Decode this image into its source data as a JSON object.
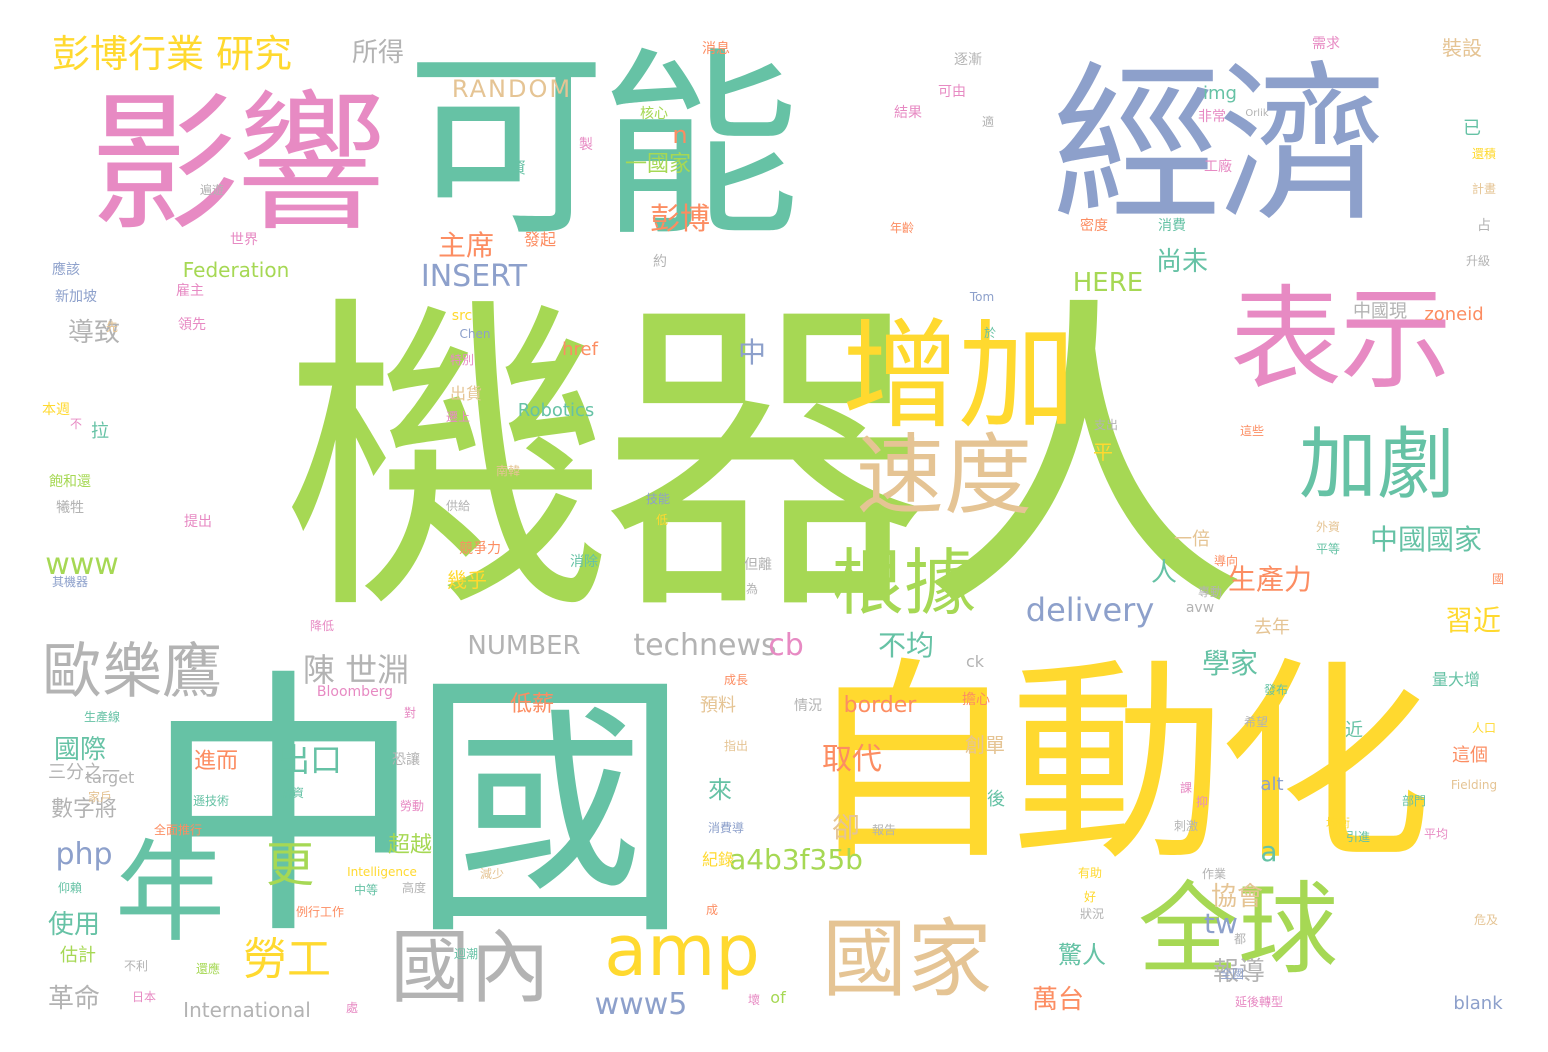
{
  "words": [
    {
      "text": "機器人",
      "color": "#a6d854"
    },
    {
      "text": "可能",
      "color": "#66c2a5"
    },
    {
      "text": "經濟",
      "color": "#8da0cb"
    },
    {
      "text": "影響",
      "color": "#e78ac3"
    },
    {
      "text": "中國",
      "color": "#66c2a5"
    },
    {
      "text": "自動化",
      "color": "#ffd92f"
    },
    {
      "text": "增加",
      "color": "#ffd92f"
    },
    {
      "text": "表示",
      "color": "#e78ac3"
    },
    {
      "text": "速度",
      "color": "#e5c494"
    },
    {
      "text": "加劇",
      "color": "#66c2a5"
    },
    {
      "text": "根據",
      "color": "#a6d854"
    },
    {
      "text": "全球",
      "color": "#a6d854"
    },
    {
      "text": "國家",
      "color": "#e5c494"
    },
    {
      "text": "年",
      "color": "#66c2a5"
    },
    {
      "text": "國內",
      "color": "#b3b3b3"
    },
    {
      "text": "amp",
      "color": "#ffd92f"
    },
    {
      "text": "歐樂鷹",
      "color": "#b3b3b3"
    },
    {
      "text": "彭博行業 研究",
      "color": "#ffd92f"
    },
    {
      "text": "勞工",
      "color": "#ffd92f"
    },
    {
      "text": "更",
      "color": "#a6d854"
    },
    {
      "text": "陳 世淵",
      "color": "#b3b3b3"
    },
    {
      "text": "出口",
      "color": "#66c2a5"
    },
    {
      "text": "中",
      "color": "#8da0cb"
    },
    {
      "text": "中國國家",
      "color": "#66c2a5"
    },
    {
      "text": "主席",
      "color": "#fc8d62"
    },
    {
      "text": "INSERT",
      "color": "#8da0cb"
    },
    {
      "text": "RANDOM",
      "color": "#e5c494"
    },
    {
      "text": "delivery",
      "color": "#8da0cb"
    },
    {
      "text": "technews",
      "color": "#b3b3b3"
    },
    {
      "text": "NUMBER",
      "color": "#b3b3b3"
    },
    {
      "text": "cb",
      "color": "#e78ac3"
    },
    {
      "text": "a4b3f35b",
      "color": "#a6d854"
    },
    {
      "text": "www5",
      "color": "#8da0cb"
    },
    {
      "text": "php",
      "color": "#8da0cb"
    },
    {
      "text": "www",
      "color": "#a6d854"
    },
    {
      "text": "彭博",
      "color": "#fc8d62"
    },
    {
      "text": "一國家",
      "color": "#a6d854"
    },
    {
      "text": "n",
      "color": "#fc8d62"
    },
    {
      "text": "HERE",
      "color": "#a6d854"
    },
    {
      "text": "Federation",
      "color": "#a6d854"
    },
    {
      "text": "Robotics",
      "color": "#66c2a5"
    },
    {
      "text": "href",
      "color": "#fc8d62"
    },
    {
      "text": "zoneid",
      "color": "#fc8d62"
    },
    {
      "text": "中國現",
      "color": "#b3b3b3"
    },
    {
      "text": "尚未",
      "color": "#66c2a5"
    },
    {
      "text": "生產力",
      "color": "#fc8d62"
    },
    {
      "text": "習近",
      "color": "#ffd92f"
    },
    {
      "text": "學家",
      "color": "#66c2a5"
    },
    {
      "text": "報導",
      "color": "#b3b3b3"
    },
    {
      "text": "協會",
      "color": "#e5c494"
    },
    {
      "text": "tw",
      "color": "#8da0cb"
    },
    {
      "text": "a",
      "color": "#66c2a5"
    },
    {
      "text": "border",
      "color": "#fc8d62"
    },
    {
      "text": "取代",
      "color": "#fc8d62"
    },
    {
      "text": "卻",
      "color": "#e5c494"
    },
    {
      "text": "來",
      "color": "#66c2a5"
    },
    {
      "text": "超越",
      "color": "#a6d854"
    },
    {
      "text": "萬台",
      "color": "#fc8d62"
    },
    {
      "text": "驚人",
      "color": "#66c2a5"
    },
    {
      "text": "不均",
      "color": "#66c2a5"
    },
    {
      "text": "人",
      "color": "#66c2a5"
    },
    {
      "text": "幾乎",
      "color": "#ffd92f"
    },
    {
      "text": "平",
      "color": "#ffd92f"
    },
    {
      "text": "一倍",
      "color": "#e5c494"
    },
    {
      "text": "去年",
      "color": "#e5c494"
    },
    {
      "text": "導致",
      "color": "#b3b3b3"
    },
    {
      "text": "國際",
      "color": "#66c2a5"
    },
    {
      "text": "數字將",
      "color": "#b3b3b3"
    },
    {
      "text": "使用",
      "color": "#66c2a5"
    },
    {
      "text": "革命",
      "color": "#b3b3b3"
    },
    {
      "text": "所得",
      "color": "#b3b3b3"
    },
    {
      "text": "進而",
      "color": "#fc8d62"
    },
    {
      "text": "低薪",
      "color": "#fc8d62"
    },
    {
      "text": "創單",
      "color": "#e5c494"
    },
    {
      "text": "紀錄",
      "color": "#ffd92f"
    },
    {
      "text": "預料",
      "color": "#e5c494"
    },
    {
      "text": "裝設",
      "color": "#e5c494"
    },
    {
      "text": "img",
      "color": "#66c2a5"
    },
    {
      "text": "三分之一",
      "color": "#b3b3b3"
    },
    {
      "text": "International",
      "color": "#b3b3b3"
    },
    {
      "text": "blank",
      "color": "#8da0cb"
    },
    {
      "text": "of",
      "color": "#a6d854"
    },
    {
      "text": "alt",
      "color": "#8da0cb"
    },
    {
      "text": "target",
      "color": "#b3b3b3"
    },
    {
      "text": "Bloomberg",
      "color": "#e78ac3"
    },
    {
      "text": "src",
      "color": "#ffd92f"
    },
    {
      "text": "Chen",
      "color": "#8da0cb"
    },
    {
      "text": "avw",
      "color": "#b3b3b3"
    },
    {
      "text": "ck",
      "color": "#b3b3b3"
    },
    {
      "text": "Tom",
      "color": "#8da0cb"
    },
    {
      "text": "Intelligence",
      "color": "#ffd92f"
    },
    {
      "text": "Fielding",
      "color": "#e5c494"
    },
    {
      "text": "Orlik",
      "color": "#b3b3b3"
    },
    {
      "text": "估計",
      "color": "#a6d854"
    },
    {
      "text": "拉",
      "color": "#66c2a5"
    },
    {
      "text": "出貨",
      "color": "#e5c494"
    },
    {
      "text": "這個",
      "color": "#fc8d62"
    },
    {
      "text": "量大增",
      "color": "#66c2a5"
    },
    {
      "text": "後",
      "color": "#66c2a5"
    },
    {
      "text": "近",
      "color": "#66c2a5"
    },
    {
      "text": "已",
      "color": "#66c2a5"
    },
    {
      "text": "消息",
      "color": "#fc8d62"
    },
    {
      "text": "逐漸",
      "color": "#b3b3b3"
    },
    {
      "text": "需求",
      "color": "#e78ac3"
    },
    {
      "text": "核心",
      "color": "#a6d854"
    },
    {
      "text": "可由",
      "color": "#e78ac3"
    },
    {
      "text": "結果",
      "color": "#e78ac3"
    },
    {
      "text": "非常",
      "color": "#e78ac3"
    },
    {
      "text": "工廠",
      "color": "#e78ac3"
    },
    {
      "text": "資",
      "color": "#66c2a5"
    },
    {
      "text": "製",
      "color": "#e78ac3"
    },
    {
      "text": "密度",
      "color": "#fc8d62"
    },
    {
      "text": "消費",
      "color": "#66c2a5"
    },
    {
      "text": "年齡",
      "color": "#fc8d62"
    },
    {
      "text": "發起",
      "color": "#fc8d62"
    },
    {
      "text": "約",
      "color": "#b3b3b3"
    },
    {
      "text": "世界",
      "color": "#e78ac3"
    },
    {
      "text": "應該",
      "color": "#8da0cb"
    },
    {
      "text": "新加坡",
      "color": "#8da0cb"
    },
    {
      "text": "雇主",
      "color": "#e78ac3"
    },
    {
      "text": "領先",
      "color": "#e78ac3"
    },
    {
      "text": "本週",
      "color": "#ffd92f"
    },
    {
      "text": "不",
      "color": "#e78ac3"
    },
    {
      "text": "飽和還",
      "color": "#a6d854"
    },
    {
      "text": "犧牲",
      "color": "#b3b3b3"
    },
    {
      "text": "其機器",
      "color": "#8da0cb"
    },
    {
      "text": "提出",
      "color": "#e78ac3"
    },
    {
      "text": "供給",
      "color": "#b3b3b3"
    },
    {
      "text": "競爭力",
      "color": "#fc8d62"
    },
    {
      "text": "消除",
      "color": "#66c2a5"
    },
    {
      "text": "但離",
      "color": "#b3b3b3"
    },
    {
      "text": "為",
      "color": "#b3b3b3"
    },
    {
      "text": "技能",
      "color": "#8da0cb"
    },
    {
      "text": "低",
      "color": "#ffd92f"
    },
    {
      "text": "南韓",
      "color": "#e5c494"
    },
    {
      "text": "這些",
      "color": "#fc8d62"
    },
    {
      "text": "支出",
      "color": "#b3b3b3"
    },
    {
      "text": "導向",
      "color": "#fc8d62"
    },
    {
      "text": "外資",
      "color": "#e5c494"
    },
    {
      "text": "平等",
      "color": "#66c2a5"
    },
    {
      "text": "國",
      "color": "#fc8d62"
    },
    {
      "text": "人口",
      "color": "#ffd92f"
    },
    {
      "text": "部門",
      "color": "#66c2a5"
    },
    {
      "text": "希望",
      "color": "#b3b3b3"
    },
    {
      "text": "擔心",
      "color": "#fc8d62"
    },
    {
      "text": "情況",
      "color": "#b3b3b3"
    },
    {
      "text": "成長",
      "color": "#fc8d62"
    },
    {
      "text": "指出",
      "color": "#e5c494"
    },
    {
      "text": "對",
      "color": "#e78ac3"
    },
    {
      "text": "恐讓",
      "color": "#b3b3b3"
    },
    {
      "text": "勞動",
      "color": "#e78ac3"
    },
    {
      "text": "遜技術",
      "color": "#66c2a5"
    },
    {
      "text": "薪資",
      "color": "#66c2a5"
    },
    {
      "text": "全面推行",
      "color": "#fc8d62"
    },
    {
      "text": "仰賴",
      "color": "#66c2a5"
    },
    {
      "text": "中等",
      "color": "#66c2a5"
    },
    {
      "text": "高度",
      "color": "#b3b3b3"
    },
    {
      "text": "例行工作",
      "color": "#fc8d62"
    },
    {
      "text": "減少",
      "color": "#e5c494"
    },
    {
      "text": "消費導",
      "color": "#8da0cb"
    },
    {
      "text": "報告",
      "color": "#b3b3b3"
    },
    {
      "text": "有助",
      "color": "#ffd92f"
    },
    {
      "text": "好",
      "color": "#ffd92f"
    },
    {
      "text": "作業",
      "color": "#b3b3b3"
    },
    {
      "text": "狀況",
      "color": "#b3b3b3"
    },
    {
      "text": "成",
      "color": "#fc8d62"
    },
    {
      "text": "都",
      "color": "#b3b3b3"
    },
    {
      "text": "全國",
      "color": "#8da0cb"
    },
    {
      "text": "延後轉型",
      "color": "#e78ac3"
    },
    {
      "text": "壞",
      "color": "#e78ac3"
    },
    {
      "text": "處",
      "color": "#e78ac3"
    },
    {
      "text": "日本",
      "color": "#e78ac3"
    },
    {
      "text": "還應",
      "color": "#a6d854"
    },
    {
      "text": "不利",
      "color": "#b3b3b3"
    },
    {
      "text": "生產線",
      "color": "#66c2a5"
    },
    {
      "text": "家戶",
      "color": "#e5c494"
    },
    {
      "text": "降低",
      "color": "#e78ac3"
    },
    {
      "text": "適",
      "color": "#b3b3b3"
    },
    {
      "text": "計畫",
      "color": "#e5c494"
    },
    {
      "text": "還積",
      "color": "#ffd92f"
    },
    {
      "text": "升級",
      "color": "#b3b3b3"
    },
    {
      "text": "占",
      "color": "#b3b3b3"
    },
    {
      "text": "於",
      "color": "#66c2a5"
    },
    {
      "text": "遷上",
      "color": "#e78ac3"
    },
    {
      "text": "特別",
      "color": "#e78ac3"
    },
    {
      "text": "先",
      "color": "#e5c494"
    },
    {
      "text": "遍遊",
      "color": "#b3b3b3"
    },
    {
      "text": "迴潮",
      "color": "#66c2a5"
    },
    {
      "text": "抑",
      "color": "#e78ac3"
    },
    {
      "text": "課",
      "color": "#e78ac3"
    },
    {
      "text": "刺激",
      "color": "#b3b3b3"
    },
    {
      "text": "均衡",
      "color": "#ffd92f"
    },
    {
      "text": "引進",
      "color": "#66c2a5"
    },
    {
      "text": "平均",
      "color": "#e78ac3"
    },
    {
      "text": "危及",
      "color": "#e5c494"
    },
    {
      "text": "發布",
      "color": "#66c2a5"
    },
    {
      "text": "專動",
      "color": "#b3b3b3"
    }
  ]
}
